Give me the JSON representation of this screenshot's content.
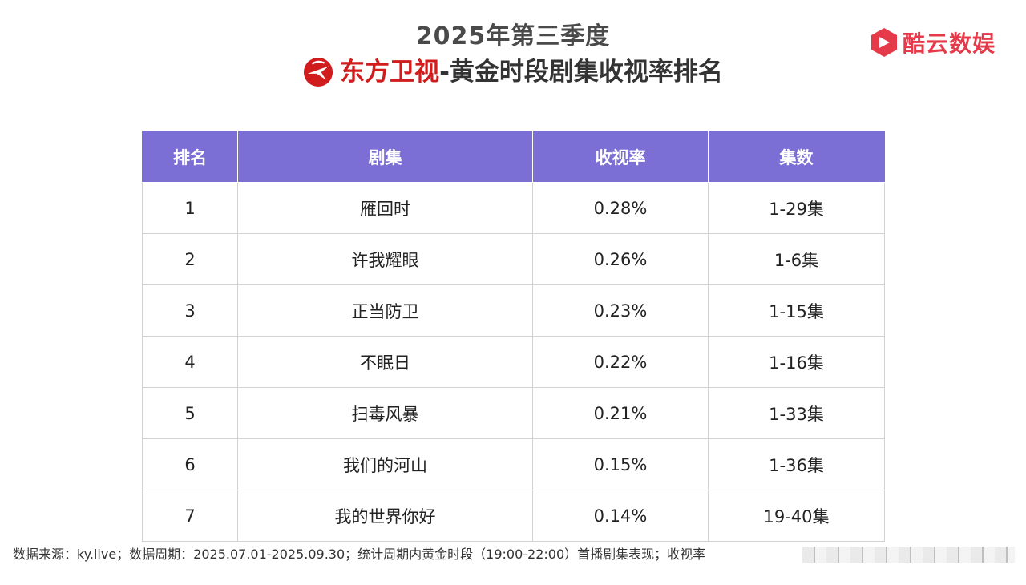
{
  "header": {
    "title_line1": "2025年第三季度",
    "channel_name": "东方卫视",
    "title_rest": "-黄金时段剧集收视率排名",
    "channel_logo_icon": "dragon-tv-logo-icon",
    "channel_color": "#d01c1c"
  },
  "brand": {
    "name": "酷云数娱",
    "icon": "kuyun-logo-icon",
    "color": "#e53a4a"
  },
  "table": {
    "header_color": "#7b6fd6",
    "columns": [
      "排名",
      "剧集",
      "收视率",
      "集数"
    ],
    "rows": [
      {
        "rank": "1",
        "title": "雁回时",
        "rating": "0.28%",
        "episodes": "1-29集"
      },
      {
        "rank": "2",
        "title": "许我耀眼",
        "rating": "0.26%",
        "episodes": "1-6集"
      },
      {
        "rank": "3",
        "title": "正当防卫",
        "rating": "0.23%",
        "episodes": "1-15集"
      },
      {
        "rank": "4",
        "title": "不眠日",
        "rating": "0.22%",
        "episodes": "1-16集"
      },
      {
        "rank": "5",
        "title": "扫毒风暴",
        "rating": "0.21%",
        "episodes": "1-33集"
      },
      {
        "rank": "6",
        "title": "我们的河山",
        "rating": "0.15%",
        "episodes": "1-36集"
      },
      {
        "rank": "7",
        "title": "我的世界你好",
        "rating": "0.14%",
        "episodes": "19-40集"
      }
    ]
  },
  "footer": {
    "note": "数据来源：ky.live；数据周期：2025.07.01-2025.09.30；统计周期内黄金时段（19:00-22:00）首播剧集表现；收视率"
  }
}
